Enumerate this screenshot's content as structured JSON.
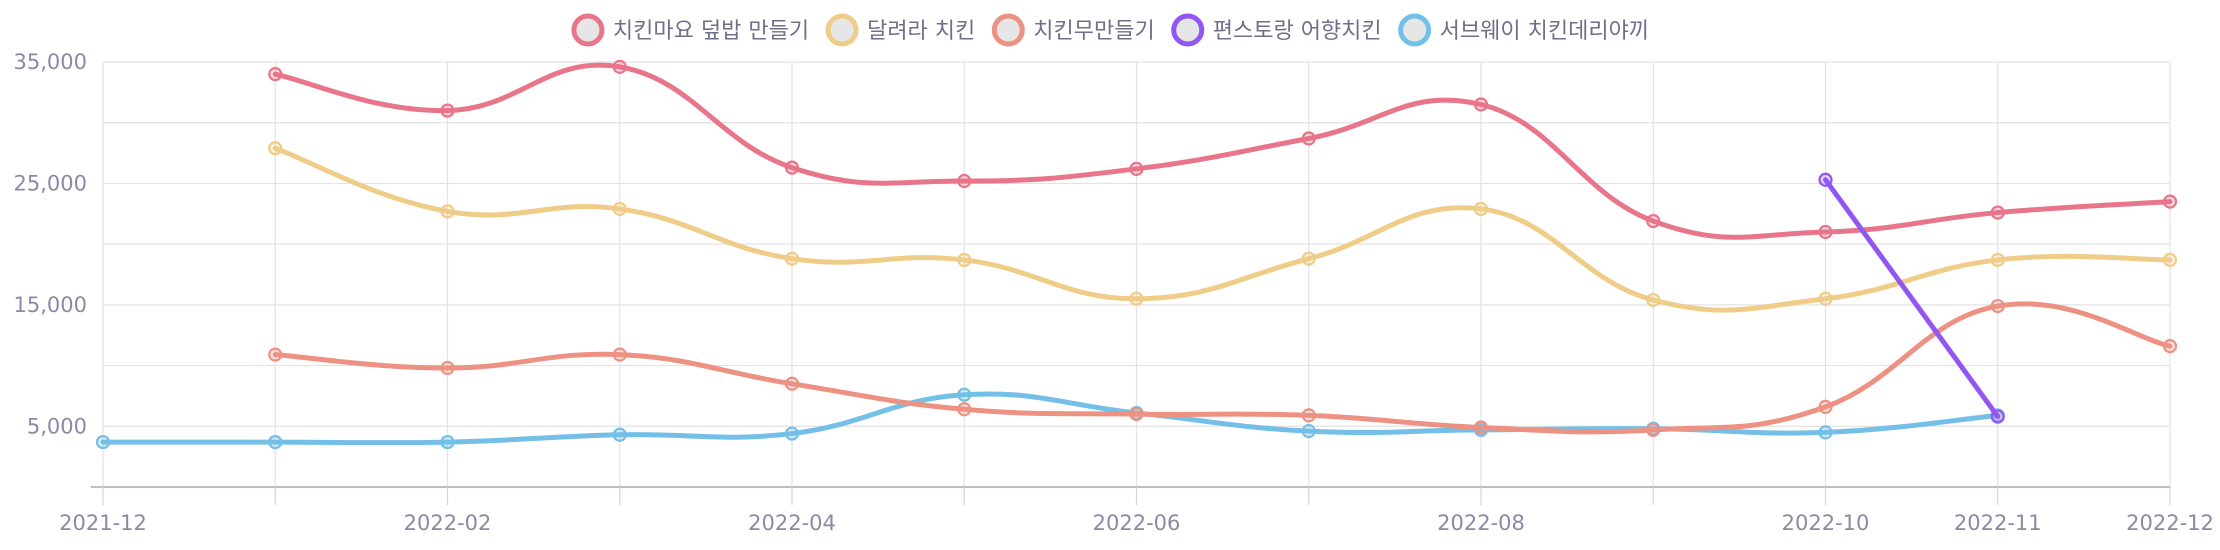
{
  "chart_data": {
    "type": "line",
    "x": [
      "2021-12",
      "2022-01",
      "2022-02",
      "2022-03",
      "2022-04",
      "2022-05",
      "2022-06",
      "2022-07",
      "2022-08",
      "2022-09",
      "2022-10",
      "2022-11",
      "2022-12"
    ],
    "x_tick_labels": [
      "2021-12",
      "2022-02",
      "2022-04",
      "2022-06",
      "2022-08",
      "2022-10",
      "2022-11",
      "2022-12"
    ],
    "y_ticks": [
      5000,
      15000,
      25000,
      35000
    ],
    "y_tick_labels": [
      "5,000",
      "15,000",
      "25,000",
      "35,000"
    ],
    "ylim": [
      0,
      35000
    ],
    "legend_position": "top",
    "grid": true,
    "smooth": true,
    "series": [
      {
        "name": "치킨마요 덮밥 만들기",
        "color": "#e8758a",
        "values": [
          null,
          34000,
          31000,
          34600,
          26300,
          25200,
          26200,
          28700,
          31500,
          21900,
          21000,
          22600,
          23500
        ]
      },
      {
        "name": "달려라 치킨",
        "color": "#efcd88",
        "values": [
          null,
          27900,
          22700,
          22900,
          18800,
          18700,
          15500,
          18800,
          22900,
          15400,
          15500,
          18700,
          18700
        ]
      },
      {
        "name": "치킨무만들기",
        "color": "#ed9283",
        "values": [
          null,
          10900,
          9800,
          10900,
          8500,
          6400,
          6000,
          5900,
          4900,
          4700,
          6600,
          14900,
          11600
        ]
      },
      {
        "name": "편스토랑 어향치킨",
        "color": "#9257f2",
        "values": [
          null,
          null,
          null,
          null,
          null,
          null,
          null,
          null,
          null,
          null,
          25300,
          5800,
          null
        ]
      },
      {
        "name": "서브웨이 치킨데리야끼",
        "color": "#74bfe8",
        "values": [
          3700,
          3700,
          3700,
          4300,
          4400,
          7600,
          6100,
          4600,
          4700,
          4800,
          4500,
          5900,
          null
        ]
      }
    ]
  }
}
